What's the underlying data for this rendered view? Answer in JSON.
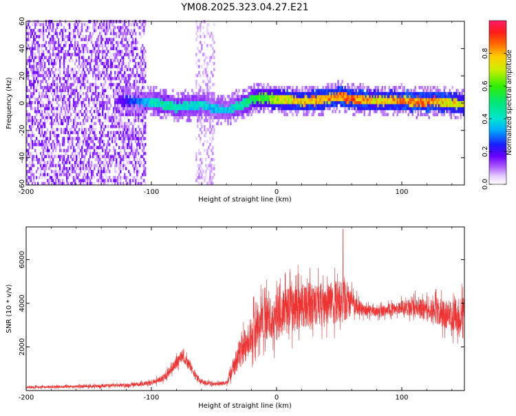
{
  "title": "YM08.2025.323.04.27.E21",
  "chart_data": [
    {
      "type": "heatmap",
      "xlabel": "Height of straight line (km)",
      "ylabel": "Frequency (Hz)",
      "xlim": [
        -200,
        150
      ],
      "ylim": [
        -60,
        60
      ],
      "xticks": [
        -200,
        -100,
        0,
        100
      ],
      "yticks": [
        -60,
        -40,
        -20,
        0,
        20,
        40,
        60
      ],
      "colorbar": {
        "label": "Normalized spectral amplitude",
        "range": [
          0,
          1
        ],
        "ticks": [
          0.0,
          0.2,
          0.4,
          0.6,
          0.8
        ],
        "tick_labels": [
          "0.0",
          "0.2",
          "0.4",
          "0.6",
          "0.8"
        ]
      },
      "noise_region": {
        "x": [
          -200,
          -105
        ],
        "y": [
          -60,
          60
        ],
        "amplitude": 0.08
      },
      "secondary_noise": {
        "x": [
          -65,
          -50
        ],
        "y": [
          -60,
          60
        ],
        "amplitude": 0.05
      },
      "ridge": {
        "x": [
          -130,
          -120,
          -110,
          -100,
          -90,
          -80,
          -70,
          -60,
          -50,
          -40,
          -35,
          -30,
          -25,
          -20,
          -10,
          0,
          10,
          20,
          30,
          40,
          50,
          60,
          70,
          80,
          90,
          100,
          110,
          120,
          130,
          140,
          150
        ],
        "freq": [
          1,
          1,
          0,
          0,
          -2,
          -4,
          -3,
          -2,
          -5,
          -6,
          -4,
          -3,
          -1,
          2,
          3,
          2,
          1,
          0,
          1,
          2,
          4,
          2,
          1,
          1,
          1,
          1,
          0,
          0,
          0,
          -1,
          -2
        ],
        "amplitude": [
          0.15,
          0.25,
          0.35,
          0.45,
          0.5,
          0.5,
          0.45,
          0.45,
          0.4,
          0.4,
          0.45,
          0.5,
          0.55,
          0.6,
          0.7,
          0.8,
          0.85,
          0.9,
          0.9,
          0.9,
          0.95,
          0.95,
          0.9,
          0.85,
          0.9,
          0.95,
          0.95,
          0.95,
          0.9,
          0.85,
          0.8
        ]
      }
    },
    {
      "type": "line",
      "xlabel": "Height of straight line (km)",
      "ylabel": "SNR (10 * v/v)",
      "xlim": [
        -200,
        150
      ],
      "ylim": [
        0,
        7500
      ],
      "xticks": [
        -200,
        -100,
        0,
        100
      ],
      "yticks": [
        2000,
        4000,
        6000
      ],
      "color": "#ee3333",
      "envelope": {
        "x": [
          -200,
          -150,
          -120,
          -100,
          -90,
          -85,
          -80,
          -75,
          -70,
          -65,
          -60,
          -50,
          -40,
          -35,
          -30,
          -25,
          -20,
          -15,
          -10,
          -5,
          0,
          5,
          10,
          20,
          30,
          40,
          50,
          55,
          60,
          70,
          80,
          90,
          100,
          110,
          120,
          130,
          140,
          150
        ],
        "mean": [
          150,
          200,
          250,
          350,
          600,
          900,
          1300,
          1600,
          1200,
          700,
          400,
          300,
          350,
          1000,
          1600,
          2100,
          2600,
          3000,
          3300,
          3300,
          3400,
          3500,
          3700,
          3900,
          4000,
          4000,
          4100,
          4200,
          4000,
          3700,
          3600,
          3700,
          3800,
          3800,
          3700,
          3600,
          3400,
          3500
        ],
        "spread": [
          100,
          120,
          150,
          200,
          300,
          400,
          500,
          500,
          400,
          300,
          200,
          150,
          200,
          800,
          1200,
          1400,
          1600,
          1700,
          1800,
          1900,
          2000,
          2000,
          2000,
          1900,
          1800,
          1700,
          1800,
          2000,
          1000,
          500,
          400,
          500,
          600,
          800,
          900,
          1100,
          1300,
          1500
        ]
      },
      "peak": {
        "x": 53,
        "y": 7400
      }
    }
  ]
}
